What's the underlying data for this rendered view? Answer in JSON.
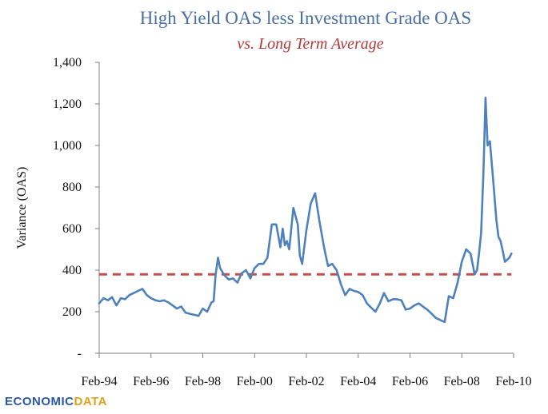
{
  "chart_data": {
    "type": "line",
    "title": "High Yield OAS less Investment Grade OAS",
    "subtitle": "vs. Long Term Average",
    "ylabel": "Variance (OAS)",
    "xlabel": "",
    "ylim": [
      0,
      1400
    ],
    "yticks": [
      0,
      200,
      400,
      600,
      800,
      1000,
      1200,
      1400
    ],
    "ytick_labels": [
      "-",
      "200",
      "400",
      "600",
      "800",
      "1,000",
      "1,200",
      "1,400"
    ],
    "xlim": [
      1994.083,
      2010.083
    ],
    "xticks": [
      1994.083,
      1996.083,
      1998.083,
      2000.083,
      2002.083,
      2004.083,
      2006.083,
      2008.083,
      2010.083
    ],
    "xtick_labels": [
      "Feb-94",
      "Feb-96",
      "Feb-98",
      "Feb-00",
      "Feb-02",
      "Feb-04",
      "Feb-06",
      "Feb-08",
      "Feb-10"
    ],
    "grid": false,
    "legend": "none",
    "colors": {
      "series": "#4f81bd",
      "average": "#c0504d",
      "title": "#4a6fa5",
      "subtitle": "#b03a3a"
    },
    "series": [
      {
        "x": [
          1994.08,
          1994.25,
          1994.42,
          1994.58,
          1994.75,
          1994.92,
          1995.08,
          1995.25,
          1995.42,
          1995.58,
          1995.75,
          1995.92,
          1996.08,
          1996.25,
          1996.42,
          1996.58,
          1996.75,
          1996.92,
          1997.08,
          1997.25,
          1997.42,
          1997.58,
          1997.75,
          1997.92,
          1998.08,
          1998.25,
          1998.42,
          1998.5,
          1998.58,
          1998.67,
          1998.75,
          1998.92,
          1999.08,
          1999.25,
          1999.42,
          1999.58,
          1999.75,
          1999.92,
          2000.08,
          2000.25,
          2000.42,
          2000.58,
          2000.75,
          2000.92,
          2001.08,
          2001.17,
          2001.25,
          2001.33,
          2001.42,
          2001.58,
          2001.75,
          2001.83,
          2001.92,
          2002.08,
          2002.25,
          2002.42,
          2002.58,
          2002.75,
          2002.83,
          2002.92,
          2003.08,
          2003.25,
          2003.42,
          2003.58,
          2003.75,
          2003.92,
          2004.08,
          2004.25,
          2004.42,
          2004.58,
          2004.75,
          2004.92,
          2005.08,
          2005.25,
          2005.42,
          2005.58,
          2005.75,
          2005.92,
          2006.08,
          2006.25,
          2006.42,
          2006.58,
          2006.75,
          2006.92,
          2007.08,
          2007.25,
          2007.42,
          2007.58,
          2007.75,
          2007.92,
          2008.08,
          2008.25,
          2008.42,
          2008.58,
          2008.67,
          2008.75,
          2008.83,
          2008.92,
          2009.0,
          2009.08,
          2009.17,
          2009.25,
          2009.33,
          2009.42,
          2009.5,
          2009.58,
          2009.67,
          2009.75,
          2009.92,
          2010.0
        ],
        "values": [
          240,
          265,
          255,
          270,
          230,
          265,
          260,
          280,
          290,
          300,
          310,
          280,
          265,
          255,
          250,
          255,
          245,
          230,
          215,
          225,
          195,
          190,
          185,
          180,
          215,
          200,
          245,
          250,
          380,
          460,
          410,
          375,
          355,
          360,
          340,
          385,
          400,
          360,
          410,
          430,
          430,
          460,
          620,
          620,
          510,
          600,
          520,
          540,
          500,
          700,
          620,
          470,
          430,
          590,
          720,
          770,
          640,
          520,
          470,
          420,
          430,
          400,
          330,
          280,
          310,
          300,
          295,
          280,
          240,
          220,
          200,
          240,
          290,
          250,
          260,
          260,
          255,
          210,
          215,
          230,
          240,
          225,
          210,
          190,
          170,
          160,
          150,
          275,
          265,
          340,
          440,
          500,
          480,
          380,
          400,
          480,
          580,
          870,
          1230,
          1000,
          1020,
          900,
          780,
          640,
          560,
          540,
          490,
          440,
          460,
          480
        ]
      },
      {
        "values": [
          380,
          380
        ],
        "x": [
          1994.08,
          2010.0
        ]
      }
    ]
  },
  "branding": {
    "logo_part1": "ECONOMIC",
    "logo_part2": "DATA"
  }
}
